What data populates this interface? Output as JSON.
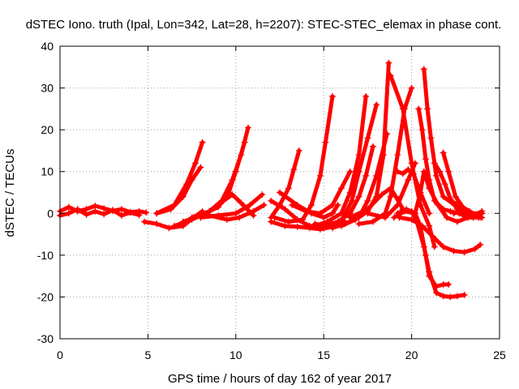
{
  "chart_data": {
    "type": "scatter",
    "title": "dSTEC Iono. truth (Ipal, Lon=342, Lat=28, h=2207): STEC-STEC_elemax in phase cont.",
    "xlabel": "GPS time / hours of day 162 of year 2017",
    "ylabel": "dSTEC  / TECUs",
    "xlim": [
      0,
      25
    ],
    "ylim": [
      -30,
      40
    ],
    "x_ticks": [
      0,
      5,
      10,
      15,
      20,
      25
    ],
    "y_ticks": [
      -30,
      -20,
      -10,
      0,
      10,
      20,
      30,
      40
    ],
    "x_tick_labels": [
      "0",
      "5",
      "10",
      "15",
      "20",
      "25"
    ],
    "y_tick_labels": [
      "-30",
      "-20",
      "-10",
      "0",
      "10",
      "20",
      "30",
      "40"
    ],
    "grid": true,
    "legend": "none",
    "marker": "plus",
    "color": "#ff0000",
    "series": [
      {
        "x": [
          0.0,
          0.5,
          1.0,
          1.5,
          2.0,
          2.5,
          3.0,
          3.5,
          4.0,
          4.5,
          4.9
        ],
        "y": [
          0.5,
          1.5,
          0.5,
          1.0,
          1.8,
          1.2,
          0.6,
          1.0,
          0.3,
          0.5,
          0.2
        ]
      },
      {
        "x": [
          0.0,
          0.5,
          1.0,
          1.5,
          2.0,
          2.5,
          3.0,
          3.5,
          4.0,
          4.5
        ],
        "y": [
          -0.5,
          0.0,
          1.0,
          -0.3,
          0.5,
          -0.2,
          0.8,
          -0.5,
          0.2,
          -0.4
        ]
      },
      {
        "x": [
          4.8,
          5.5,
          6.2,
          7.0,
          7.6,
          8.1
        ],
        "y": [
          -2.0,
          -2.5,
          -3.5,
          -3.0,
          -1.0,
          0.5
        ]
      },
      {
        "x": [
          5.5,
          6.5,
          7.2,
          7.7,
          8.1
        ],
        "y": [
          0.0,
          2.0,
          7.0,
          12.0,
          17.0
        ]
      },
      {
        "x": [
          5.5,
          6.3,
          7.0,
          7.5,
          8.0
        ],
        "y": [
          0.0,
          1.0,
          4.0,
          8.0,
          11.0
        ]
      },
      {
        "x": [
          6.5,
          7.5,
          8.5,
          9.2,
          9.8,
          10.3,
          10.7
        ],
        "y": [
          -3.0,
          -1.5,
          0.5,
          3.0,
          8.0,
          14.0,
          20.5
        ]
      },
      {
        "x": [
          7.0,
          8.0,
          9.0,
          9.6,
          10.0,
          10.5
        ],
        "y": [
          -2.0,
          -0.5,
          1.5,
          5.0,
          10.0,
          17.0
        ]
      },
      {
        "x": [
          7.5,
          8.5,
          9.3,
          9.8,
          10.3,
          11.0
        ],
        "y": [
          -1.0,
          0.5,
          3.0,
          4.5,
          2.5,
          -0.5
        ]
      },
      {
        "x": [
          8.0,
          9.0,
          10.0,
          10.8,
          11.5
        ],
        "y": [
          -1.0,
          -0.5,
          0.0,
          2.0,
          4.5
        ]
      },
      {
        "x": [
          8.5,
          9.5,
          10.2,
          11.0,
          11.6
        ],
        "y": [
          -0.5,
          -1.5,
          -1.0,
          0.5,
          2.0
        ]
      },
      {
        "x": [
          12.0,
          12.5,
          13.0,
          13.3,
          13.6
        ],
        "y": [
          -1.0,
          2.0,
          6.0,
          10.5,
          15.0
        ]
      },
      {
        "x": [
          12.0,
          12.8,
          13.5,
          14.2,
          15.0
        ],
        "y": [
          3.0,
          1.0,
          -1.5,
          -3.0,
          -3.5
        ]
      },
      {
        "x": [
          12.0,
          12.8,
          13.5,
          14.2,
          14.8,
          15.5,
          16.2
        ],
        "y": [
          -2.0,
          -3.0,
          -3.2,
          -3.5,
          -3.8,
          -3.2,
          -2.0
        ]
      },
      {
        "x": [
          12.2,
          13.0,
          13.8,
          14.3,
          14.8,
          15.1,
          15.5
        ],
        "y": [
          -1.0,
          -2.0,
          -1.5,
          2.0,
          9.0,
          17.0,
          28.0
        ]
      },
      {
        "x": [
          12.5,
          13.5,
          14.3,
          15.0,
          15.5,
          15.8
        ],
        "y": [
          5.0,
          2.0,
          0.0,
          -1.0,
          0.0,
          2.0
        ]
      },
      {
        "x": [
          13.2,
          14.0,
          14.8,
          15.5,
          16.0,
          16.5
        ],
        "y": [
          2.0,
          0.5,
          0.0,
          2.0,
          6.0,
          10.0
        ]
      },
      {
        "x": [
          14.5,
          15.2,
          16.0,
          16.5,
          17.0,
          17.4
        ],
        "y": [
          -3.0,
          -2.0,
          0.0,
          5.0,
          14.0,
          28.0
        ]
      },
      {
        "x": [
          14.5,
          15.3,
          16.0,
          16.6,
          17.0,
          17.5,
          18.0
        ],
        "y": [
          -2.5,
          -3.0,
          -2.0,
          3.0,
          10.0,
          18.0,
          26.0
        ]
      },
      {
        "x": [
          15.0,
          15.8,
          16.5,
          17.0,
          17.4,
          17.8
        ],
        "y": [
          -3.0,
          -2.0,
          0.0,
          4.0,
          9.0,
          16.0
        ]
      },
      {
        "x": [
          15.5,
          16.2,
          17.0,
          17.5,
          18.0,
          18.6
        ],
        "y": [
          -3.5,
          -2.5,
          -1.0,
          3.0,
          9.0,
          19.0
        ]
      },
      {
        "x": [
          16.0,
          16.8,
          17.5,
          18.0,
          18.4,
          18.7
        ],
        "y": [
          -3.0,
          -1.5,
          0.5,
          4.0,
          14.0,
          36.0
        ]
      },
      {
        "x": [
          17.0,
          17.8,
          18.5,
          18.8,
          19.2,
          19.6,
          20.0
        ],
        "y": [
          -2.5,
          -2.0,
          0.0,
          4.0,
          14.0,
          25.0,
          30.0
        ]
      },
      {
        "x": [
          16.5,
          17.5,
          18.3,
          18.8,
          19.1,
          19.5
        ],
        "y": [
          -1.0,
          1.0,
          4.5,
          6.0,
          4.0,
          1.0
        ]
      },
      {
        "x": [
          18.8,
          19.5,
          20.0,
          20.5,
          21.0,
          21.3
        ],
        "y": [
          33.0,
          25.0,
          12.0,
          2.0,
          -3.0,
          -8.0
        ]
      },
      {
        "x": [
          19.0,
          19.6,
          20.2
        ],
        "y": [
          -1.0,
          0.5,
          0.0
        ]
      },
      {
        "x": [
          17.5,
          18.5,
          19.2,
          19.8,
          20.2
        ],
        "y": [
          0.0,
          -1.0,
          2.0,
          8.0,
          12.0
        ]
      },
      {
        "x": [
          19.2,
          19.7,
          20.2,
          20.5,
          20.8,
          21.0,
          21.4,
          21.8,
          22.1
        ],
        "y": [
          0.0,
          1.0,
          0.0,
          -3.0,
          -10.0,
          -15.0,
          -17.5,
          -17.0,
          -17.0
        ]
      },
      {
        "x": [
          19.5,
          20.0,
          20.3,
          20.7,
          21.0,
          21.4,
          21.8,
          22.2,
          22.6,
          23.0
        ],
        "y": [
          1.0,
          0.5,
          -2.0,
          -8.0,
          -14.0,
          -19.0,
          -19.8,
          -20.0,
          -19.8,
          -19.5
        ]
      },
      {
        "x": [
          19.3,
          20.0,
          20.6,
          21.2,
          21.8,
          22.4,
          23.0,
          23.6,
          23.9
        ],
        "y": [
          -1.0,
          -1.5,
          -3.0,
          -5.5,
          -8.0,
          -9.0,
          -9.3,
          -8.5,
          -7.5
        ]
      },
      {
        "x": [
          19.2,
          19.5,
          19.8,
          20.1,
          20.5,
          21.0
        ],
        "y": [
          10.0,
          9.5,
          10.5,
          9.5,
          5.0,
          0.0
        ]
      },
      {
        "x": [
          20.2,
          20.5,
          20.7,
          21.0,
          21.5,
          22.0,
          22.6,
          23.2,
          23.8
        ],
        "y": [
          0.0,
          5.0,
          10.0,
          6.0,
          2.0,
          -1.0,
          -2.0,
          -1.0,
          -0.5
        ]
      },
      {
        "x": [
          20.4,
          20.6,
          20.8,
          21.0,
          21.3,
          21.8,
          22.2,
          22.7,
          23.2,
          23.8
        ],
        "y": [
          25.0,
          20.0,
          13.0,
          8.0,
          3.0,
          1.0,
          0.5,
          0.0,
          -1.0,
          -1.0
        ]
      },
      {
        "x": [
          20.7,
          20.9,
          21.1,
          21.4,
          21.8,
          22.3,
          22.8,
          23.4,
          24.0
        ],
        "y": [
          34.5,
          25.0,
          18.0,
          9.0,
          4.0,
          2.5,
          1.0,
          0.0,
          0.0
        ]
      },
      {
        "x": [
          21.3,
          21.6,
          21.9,
          22.2,
          22.6,
          23.0,
          23.5,
          24.0
        ],
        "y": [
          12.0,
          10.0,
          7.0,
          3.5,
          1.0,
          -0.5,
          -1.0,
          0.0
        ]
      },
      {
        "x": [
          21.8,
          22.1,
          22.5,
          23.0,
          23.5,
          24.0
        ],
        "y": [
          14.5,
          10.0,
          4.0,
          1.0,
          -0.5,
          0.5
        ]
      },
      {
        "x": [
          22.2,
          22.7,
          23.3,
          23.9
        ],
        "y": [
          3.0,
          2.0,
          0.5,
          -1.0
        ]
      },
      {
        "x": [
          22.4,
          22.9,
          23.4,
          24.0
        ],
        "y": [
          0.0,
          0.5,
          -0.5,
          -1.0
        ]
      }
    ]
  }
}
